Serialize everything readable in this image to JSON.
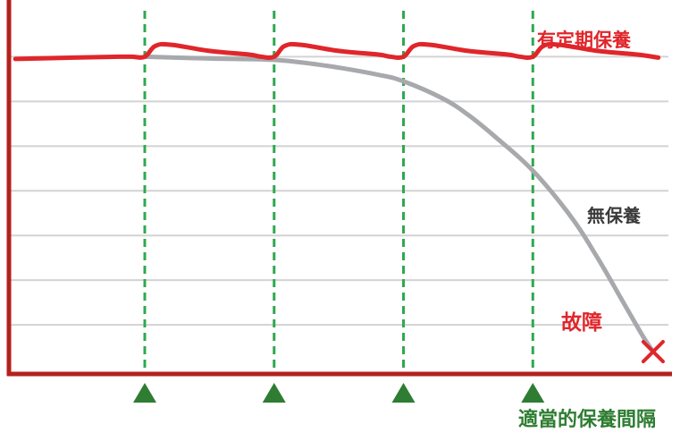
{
  "chart_data": {
    "type": "line",
    "title": "",
    "xlabel": "",
    "ylabel": "",
    "grid": true,
    "series": [
      {
        "name": "有定期保養",
        "color": "#e0262b",
        "points": [
          [
            0.0,
            0.95
          ],
          [
            0.45,
            0.98
          ],
          [
            0.8,
            1.0
          ],
          [
            0.9,
            1.0
          ],
          [
            1.0,
            1.0
          ],
          [
            1.08,
            1.24
          ],
          [
            1.2,
            1.27
          ],
          [
            1.5,
            1.13
          ],
          [
            1.8,
            1.05
          ],
          [
            1.9,
            1.0
          ],
          [
            2.0,
            1.0
          ],
          [
            2.08,
            1.24
          ],
          [
            2.2,
            1.27
          ],
          [
            2.5,
            1.13
          ],
          [
            2.8,
            1.05
          ],
          [
            2.9,
            1.0
          ],
          [
            3.0,
            1.0
          ],
          [
            3.08,
            1.24
          ],
          [
            3.2,
            1.27
          ],
          [
            3.5,
            1.13
          ],
          [
            3.8,
            1.05
          ],
          [
            3.9,
            1.0
          ],
          [
            4.0,
            1.0
          ],
          [
            4.08,
            1.24
          ],
          [
            4.2,
            1.27
          ],
          [
            4.5,
            1.13
          ],
          [
            4.8,
            1.05
          ],
          [
            4.97,
            0.98
          ]
        ]
      },
      {
        "name": "無保養",
        "color": "#a7a9ac",
        "points": [
          [
            1.0,
            1.0
          ],
          [
            1.5,
            0.96
          ],
          [
            2.0,
            0.93
          ],
          [
            2.4,
            0.8
          ],
          [
            2.8,
            0.6
          ],
          [
            3.0,
            0.45
          ],
          [
            3.3,
            0.07
          ],
          [
            3.5,
            -0.3
          ],
          [
            3.7,
            -0.77
          ],
          [
            4.0,
            -1.55
          ],
          [
            4.3,
            -2.6
          ],
          [
            4.5,
            -3.5
          ],
          [
            4.7,
            -4.5
          ],
          [
            4.85,
            -5.25
          ],
          [
            4.93,
            -5.6
          ]
        ]
      }
    ],
    "maintenance_points": [
      1,
      2,
      3,
      4
    ],
    "xlim": [
      -0.05,
      5.2
    ],
    "ylim": [
      -6.1,
      2.03
    ],
    "gridlines_y": [
      1,
      0,
      -1,
      -2,
      -3,
      -4,
      -5
    ],
    "failure_marker": [
      4.93,
      -5.6
    ],
    "labels": {
      "maintained": "有定期保養",
      "unmaintained": "無保養",
      "failure": "故障",
      "interval": "適當的保養間隔"
    },
    "colors": {
      "red": "#e0262b",
      "gray": "#a7a9ac",
      "green": "#2fa84f",
      "dark_green": "#2e7d32",
      "axis": "#b3211d",
      "grid": "#d3d3d3"
    }
  }
}
